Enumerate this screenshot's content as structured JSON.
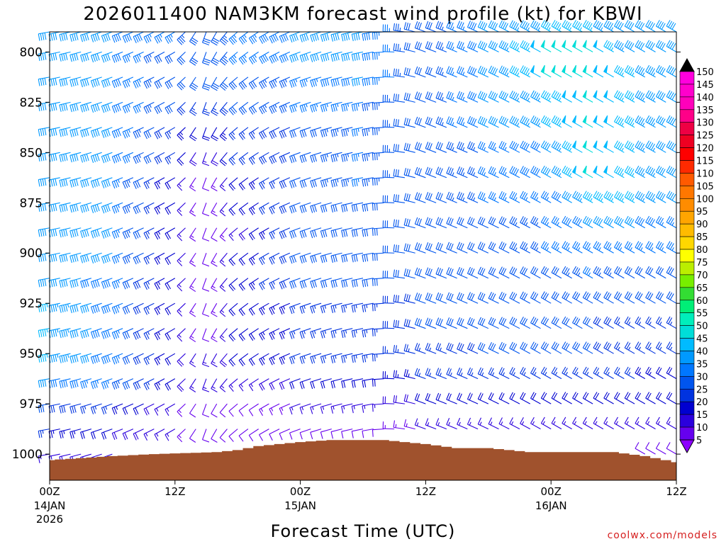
{
  "chart_data": {
    "type": "wind-barb time-height",
    "title": "2026011400 NAM3KM forecast wind profile (kt) for KBWI",
    "xlabel": "Forecast Time (UTC)",
    "credit": "coolwx.com/models",
    "y_ticks": [
      800,
      825,
      850,
      875,
      900,
      925,
      950,
      975,
      1000
    ],
    "ylim": [
      790,
      1013
    ],
    "y_unit": "hPa",
    "x_ticks": [
      {
        "hour": 0,
        "label": "00Z",
        "date": "14JAN",
        "year": "2026"
      },
      {
        "hour": 12,
        "label": "12Z",
        "date": "",
        "year": ""
      },
      {
        "hour": 24,
        "label": "00Z",
        "date": "15JAN",
        "year": ""
      },
      {
        "hour": 36,
        "label": "12Z",
        "date": "",
        "year": ""
      },
      {
        "hour": 48,
        "label": "00Z",
        "date": "16JAN",
        "year": ""
      },
      {
        "hour": 60,
        "label": "12Z",
        "date": "",
        "year": ""
      }
    ],
    "xlim": [
      0,
      60
    ],
    "pressure_levels": [
      790,
      800,
      812.5,
      825,
      837.5,
      850,
      862.5,
      875,
      887.5,
      900,
      912.5,
      925,
      937.5,
      950,
      962.5,
      975,
      987.5,
      1000
    ],
    "wind_speed_anchors": [
      {
        "hour": 0,
        "speeds": [
          40,
          40,
          40,
          40,
          40,
          40,
          40,
          40,
          40,
          40,
          42,
          45,
          45,
          45,
          40,
          30,
          25,
          15
        ]
      },
      {
        "hour": 6,
        "speeds": [
          40,
          40,
          40,
          40,
          40,
          40,
          40,
          40,
          40,
          40,
          38,
          38,
          38,
          38,
          35,
          25,
          20,
          15
        ]
      },
      {
        "hour": 12,
        "speeds": [
          35,
          30,
          30,
          30,
          25,
          25,
          20,
          20,
          20,
          20,
          20,
          20,
          20,
          20,
          20,
          15,
          15,
          10
        ]
      },
      {
        "hour": 15,
        "speeds": [
          30,
          30,
          30,
          25,
          20,
          15,
          10,
          10,
          10,
          10,
          10,
          10,
          10,
          15,
          15,
          10,
          10,
          5
        ]
      },
      {
        "hour": 18,
        "speeds": [
          35,
          35,
          30,
          30,
          25,
          25,
          20,
          20,
          15,
          20,
          20,
          20,
          20,
          20,
          15,
          10,
          10,
          5
        ]
      },
      {
        "hour": 24,
        "speeds": [
          40,
          40,
          35,
          35,
          30,
          30,
          30,
          30,
          30,
          30,
          30,
          25,
          25,
          25,
          20,
          15,
          10,
          5
        ]
      },
      {
        "hour": 30,
        "speeds": [
          40,
          40,
          40,
          35,
          35,
          35,
          35,
          30,
          30,
          30,
          30,
          25,
          25,
          25,
          20,
          15,
          10,
          5
        ]
      },
      {
        "hour": 36,
        "speeds": [
          30,
          30,
          30,
          30,
          30,
          30,
          30,
          30,
          30,
          30,
          30,
          30,
          30,
          25,
          25,
          20,
          15,
          10
        ]
      },
      {
        "hour": 42,
        "speeds": [
          40,
          40,
          40,
          40,
          40,
          35,
          35,
          35,
          30,
          30,
          30,
          30,
          30,
          30,
          25,
          20,
          15,
          10
        ]
      },
      {
        "hour": 48,
        "speeds": [
          45,
          50,
          50,
          45,
          45,
          40,
          40,
          35,
          35,
          35,
          30,
          30,
          30,
          30,
          25,
          20,
          15,
          10
        ]
      },
      {
        "hour": 52,
        "speeds": [
          45,
          50,
          50,
          50,
          50,
          50,
          50,
          45,
          40,
          35,
          35,
          30,
          30,
          30,
          25,
          20,
          15,
          10
        ]
      },
      {
        "hour": 56,
        "speeds": [
          40,
          40,
          45,
          45,
          45,
          45,
          45,
          45,
          40,
          35,
          30,
          30,
          25,
          25,
          25,
          20,
          15,
          10
        ]
      },
      {
        "hour": 60,
        "speeds": [
          40,
          40,
          40,
          40,
          40,
          40,
          40,
          40,
          35,
          35,
          30,
          30,
          25,
          25,
          20,
          20,
          15,
          10
        ]
      }
    ],
    "wind_direction_anchors": [
      {
        "hour": 0,
        "deg": 260
      },
      {
        "hour": 12,
        "deg": 240
      },
      {
        "hour": 15,
        "deg": 200
      },
      {
        "hour": 18,
        "deg": 230
      },
      {
        "hour": 24,
        "deg": 250
      },
      {
        "hour": 31,
        "deg": 260
      },
      {
        "hour": 36,
        "deg": 290
      },
      {
        "hour": 48,
        "deg": 300
      },
      {
        "hour": 60,
        "deg": 300
      }
    ],
    "surface_pressure": [
      {
        "hour": 0,
        "p": 1003
      },
      {
        "hour": 6,
        "p": 1001
      },
      {
        "hour": 10,
        "p": 1000
      },
      {
        "hour": 16,
        "p": 999
      },
      {
        "hour": 18,
        "p": 998
      },
      {
        "hour": 20,
        "p": 996
      },
      {
        "hour": 24,
        "p": 994
      },
      {
        "hour": 27,
        "p": 993
      },
      {
        "hour": 32,
        "p": 993
      },
      {
        "hour": 36,
        "p": 995
      },
      {
        "hour": 39,
        "p": 997
      },
      {
        "hour": 42,
        "p": 997
      },
      {
        "hour": 46,
        "p": 999
      },
      {
        "hour": 54,
        "p": 999
      },
      {
        "hour": 57,
        "p": 1001
      },
      {
        "hour": 60,
        "p": 1004
      }
    ],
    "colorbar": {
      "levels": [
        5,
        10,
        15,
        20,
        25,
        30,
        35,
        40,
        45,
        50,
        55,
        60,
        65,
        70,
        75,
        80,
        85,
        90,
        95,
        100,
        105,
        110,
        115,
        120,
        125,
        130,
        135,
        140,
        145,
        150
      ],
      "colors": [
        "#8c00ff",
        "#6600ee",
        "#2b00dd",
        "#0000d0",
        "#0033e0",
        "#0055ee",
        "#0077ff",
        "#0099ff",
        "#00bbff",
        "#00ddd8",
        "#00eebb",
        "#00ee77",
        "#33dd33",
        "#77ee00",
        "#bbee00",
        "#ffff00",
        "#ffd700",
        "#ffbb00",
        "#ffa500",
        "#ff8c00",
        "#ff7700",
        "#ff5a00",
        "#ff2a00",
        "#ff0000",
        "#ee0022",
        "#ee0044",
        "#ff0088",
        "#ff00bb",
        "#ff00cc",
        "#ff00dd"
      ],
      "top_color": "#000000"
    },
    "colors": {
      "terrain": "#a0522d",
      "background": "#ffffff",
      "credit": "#d62020"
    }
  }
}
